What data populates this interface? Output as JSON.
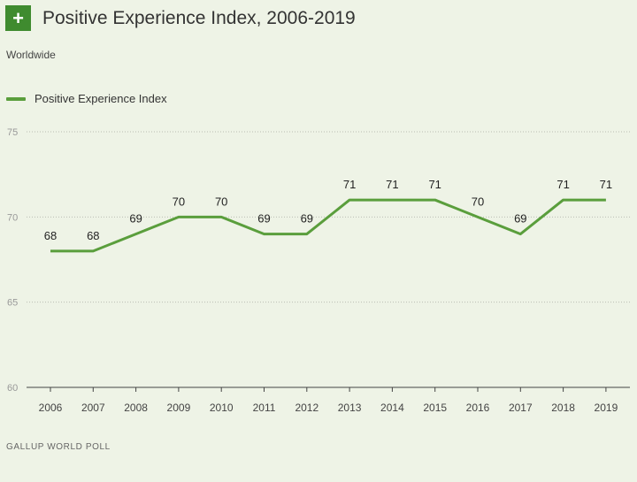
{
  "header": {
    "icon": "plus-icon",
    "icon_symbol": "+",
    "title": "Positive Experience Index, 2006-2019"
  },
  "subtitle": "Worldwide",
  "legend": {
    "label": "Positive Experience Index",
    "color": "#5a9e3c"
  },
  "source": "GALLUP WORLD POLL",
  "chart_data": {
    "type": "line",
    "title": "Positive Experience Index, 2006-2019",
    "subtitle": "Worldwide",
    "xlabel": "",
    "ylabel": "",
    "categories": [
      "2006",
      "2007",
      "2008",
      "2009",
      "2010",
      "2011",
      "2012",
      "2013",
      "2014",
      "2015",
      "2016",
      "2017",
      "2018",
      "2019"
    ],
    "series": [
      {
        "name": "Positive Experience Index",
        "color": "#5a9e3c",
        "values": [
          68,
          68,
          69,
          70,
          70,
          69,
          69,
          71,
          71,
          71,
          70,
          69,
          71,
          71
        ]
      }
    ],
    "ylim": [
      60,
      75
    ],
    "yticks": [
      60,
      65,
      70,
      75
    ],
    "grid": "horizontal-dotted",
    "legend": "top-left"
  }
}
